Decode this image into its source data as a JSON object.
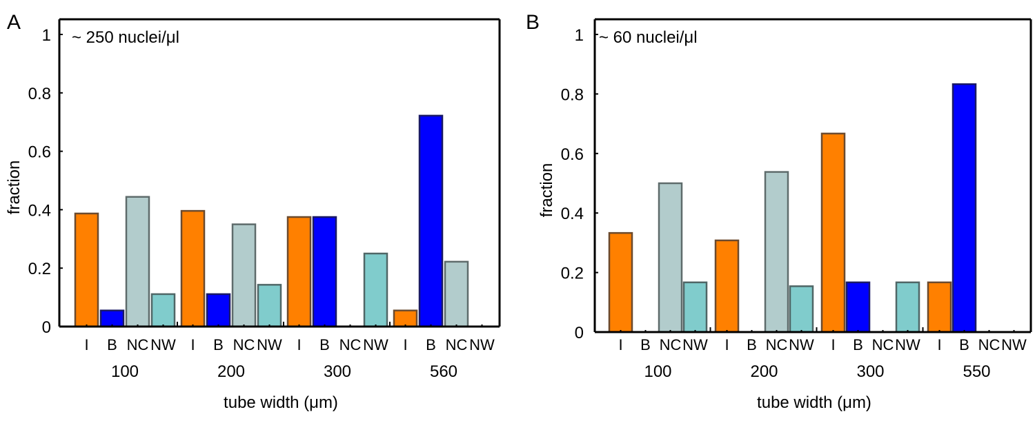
{
  "chart_data": [
    {
      "type": "bar",
      "panel": "A",
      "annotation": "~ 250 nuclei/μl",
      "xlabel": "tube width (μm)",
      "ylabel": "fraction",
      "ylim": [
        0,
        1
      ],
      "yticks": [
        "0",
        "0.2",
        "0.4",
        "0.6",
        "0.8",
        "1"
      ],
      "ytick_values": [
        0,
        0.2,
        0.4,
        0.6,
        0.8,
        1
      ],
      "groups": [
        "100",
        "200",
        "300",
        "560"
      ],
      "categories": [
        "I",
        "B",
        "NC",
        "NW"
      ],
      "grid": false,
      "series": [
        {
          "name": "I",
          "values": [
            0.387,
            0.396,
            0.375,
            0.055
          ]
        },
        {
          "name": "B",
          "values": [
            0.055,
            0.111,
            0.375,
            0.722
          ]
        },
        {
          "name": "NC",
          "values": [
            0.444,
            0.35,
            0,
            0.222
          ]
        },
        {
          "name": "NW",
          "values": [
            0.111,
            0.143,
            0.25,
            0
          ]
        }
      ]
    },
    {
      "type": "bar",
      "panel": "B",
      "annotation": "~ 60 nuclei/μl",
      "xlabel": "tube width (μm)",
      "ylabel": "fraction",
      "ylim": [
        0,
        1
      ],
      "yticks": [
        "0",
        "0.2",
        "0.4",
        "0.6",
        "0.8",
        "1"
      ],
      "ytick_values": [
        0,
        0.2,
        0.4,
        0.6,
        0.8,
        1
      ],
      "groups": [
        "100",
        "200",
        "300",
        "550"
      ],
      "categories": [
        "I",
        "B",
        "NC",
        "NW"
      ],
      "grid": false,
      "series": [
        {
          "name": "I",
          "values": [
            0.333,
            0.308,
            0.667,
            0.167
          ]
        },
        {
          "name": "B",
          "values": [
            0,
            0,
            0.167,
            0.833
          ]
        },
        {
          "name": "NC",
          "values": [
            0.5,
            0.538,
            0,
            0
          ]
        },
        {
          "name": "NW",
          "values": [
            0.167,
            0.154,
            0.167,
            0
          ]
        }
      ]
    }
  ],
  "colors": {
    "I": {
      "fill": "#ff8000",
      "stroke": "#6b4a2e"
    },
    "B": {
      "fill": "#0000ff",
      "stroke": "#1a1a66"
    },
    "NC": {
      "fill": "#b2cccc",
      "stroke": "#5e6b6b"
    },
    "NW": {
      "fill": "#80cccc",
      "stroke": "#4f6666"
    }
  }
}
